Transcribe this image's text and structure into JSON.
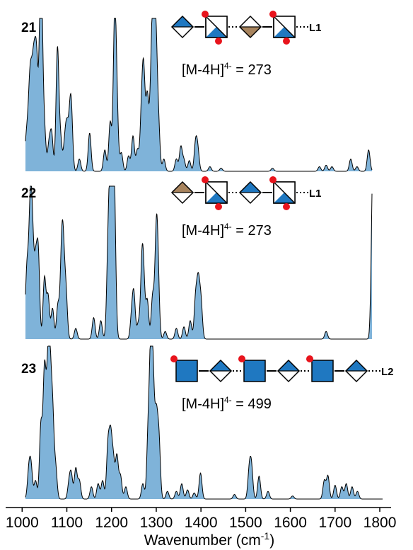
{
  "chart_data": {
    "type": "area",
    "title": "",
    "xlabel": "Wavenumber (cm",
    "xlabel_sup": "-1",
    "xlabel_close": ")",
    "ylabel": "",
    "xlim": [
      960,
      1830
    ],
    "x_ticks": [
      1000,
      1100,
      1200,
      1300,
      1400,
      1500,
      1600,
      1700,
      1800
    ],
    "grid": false,
    "fill_color": "#7fb3d9",
    "line_color": "#000000",
    "symbol_colors": {
      "glcnac_blue": "#1f78c1",
      "iduronic_tan": "#a8845e",
      "sulfate_red": "#e8141c"
    },
    "panels": [
      {
        "id": "21",
        "label": "21",
        "mass_text": "[M-4H]",
        "mass_charge": "4-",
        "mass_value": " = 273",
        "linker": "L1",
        "glycan": [
          {
            "kind": "diamond",
            "fill": "blue-top",
            "sulfate": "none"
          },
          {
            "kind": "square",
            "fill": "diag-blue",
            "sulfate": "tl-br"
          },
          {
            "kind": "diamond",
            "fill": "tan-bottom",
            "sulfate": "none"
          },
          {
            "kind": "square",
            "fill": "diag-blue",
            "sulfate": "tl-br"
          }
        ],
        "peaks": [
          [
            1003,
            0.07
          ],
          [
            1010,
            0.22
          ],
          [
            1016,
            0.37
          ],
          [
            1020,
            0.42
          ],
          [
            1025,
            0.48
          ],
          [
            1029,
            0.4
          ],
          [
            1033,
            0.55
          ],
          [
            1041,
            0.9
          ],
          [
            1044,
            0.62
          ],
          [
            1050,
            0.25
          ],
          [
            1060,
            0.17
          ],
          [
            1066,
            0.24
          ],
          [
            1079,
            0.8
          ],
          [
            1086,
            0.2
          ],
          [
            1095,
            0.16
          ],
          [
            1100,
            0.26
          ],
          [
            1106,
            0.23
          ],
          [
            1110,
            0.37
          ],
          [
            1128,
            0.08
          ],
          [
            1151,
            0.25
          ],
          [
            1185,
            0.14
          ],
          [
            1197,
            0.32
          ],
          [
            1207,
            0.98
          ],
          [
            1212,
            0.38
          ],
          [
            1222,
            0.12
          ],
          [
            1238,
            0.1
          ],
          [
            1248,
            0.23
          ],
          [
            1258,
            0.14
          ],
          [
            1267,
            0.35
          ],
          [
            1272,
            0.6
          ],
          [
            1280,
            0.48
          ],
          [
            1288,
            0.45
          ],
          [
            1293,
            0.93
          ],
          [
            1299,
            0.82
          ],
          [
            1305,
            0.3
          ],
          [
            1317,
            0.08
          ],
          [
            1345,
            0.08
          ],
          [
            1355,
            0.16
          ],
          [
            1362,
            0.07
          ],
          [
            1374,
            0.07
          ],
          [
            1388,
            0.18
          ],
          [
            1393,
            0.13
          ],
          [
            1420,
            0.03
          ],
          [
            1445,
            0.02
          ],
          [
            1560,
            0.02
          ],
          [
            1665,
            0.03
          ],
          [
            1680,
            0.04
          ],
          [
            1693,
            0.03
          ],
          [
            1735,
            0.08
          ],
          [
            1749,
            0.03
          ],
          [
            1775,
            0.14
          ]
        ]
      },
      {
        "id": "22",
        "label": "22",
        "mass_text": "[M-4H]",
        "mass_charge": "4-",
        "mass_value": " = 273",
        "linker": "L1",
        "glycan": [
          {
            "kind": "diamond",
            "fill": "tan-top",
            "sulfate": "none"
          },
          {
            "kind": "square",
            "fill": "diag-blue",
            "sulfate": "tl-br"
          },
          {
            "kind": "diamond",
            "fill": "blue-top",
            "sulfate": "none"
          },
          {
            "kind": "square",
            "fill": "diag-blue",
            "sulfate": "tl-br"
          }
        ],
        "peaks": [
          [
            1005,
            0.06
          ],
          [
            1011,
            0.45
          ],
          [
            1018,
            0.76
          ],
          [
            1023,
            0.6
          ],
          [
            1030,
            0.45
          ],
          [
            1036,
            0.55
          ],
          [
            1050,
            0.4
          ],
          [
            1058,
            0.28
          ],
          [
            1068,
            0.2
          ],
          [
            1080,
            0.22
          ],
          [
            1088,
            0.45
          ],
          [
            1092,
            0.48
          ],
          [
            1098,
            0.3
          ],
          [
            1120,
            0.07
          ],
          [
            1160,
            0.14
          ],
          [
            1176,
            0.12
          ],
          [
            1192,
            0.5
          ],
          [
            1197,
            0.84
          ],
          [
            1203,
            0.97
          ],
          [
            1207,
            0.6
          ],
          [
            1245,
            0.14
          ],
          [
            1250,
            0.28
          ],
          [
            1260,
            0.1
          ],
          [
            1268,
            0.45
          ],
          [
            1272,
            0.3
          ],
          [
            1280,
            0.25
          ],
          [
            1292,
            0.28
          ],
          [
            1300,
            0.62
          ],
          [
            1304,
            0.35
          ],
          [
            1320,
            0.05
          ],
          [
            1345,
            0.07
          ],
          [
            1362,
            0.08
          ],
          [
            1376,
            0.12
          ],
          [
            1388,
            0.26
          ],
          [
            1394,
            0.35
          ],
          [
            1400,
            0.24
          ],
          [
            1680,
            0.05
          ],
          [
            1784,
            0.95
          ],
          [
            1789,
            0.72
          ]
        ]
      },
      {
        "id": "23",
        "label": "23",
        "mass_text": "[M-4H]",
        "mass_charge": "4-",
        "mass_value": " = 499",
        "linker": "L2",
        "glycan": [
          {
            "kind": "square",
            "fill": "blue",
            "sulfate": "tl"
          },
          {
            "kind": "diamond",
            "fill": "blue-top",
            "sulfate": "none"
          },
          {
            "kind": "square",
            "fill": "blue",
            "sulfate": "tl"
          },
          {
            "kind": "diamond",
            "fill": "blue-top",
            "sulfate": "none"
          },
          {
            "kind": "square",
            "fill": "blue",
            "sulfate": "tl"
          },
          {
            "kind": "diamond",
            "fill": "blue-top",
            "sulfate": "none"
          }
        ],
        "peaks": [
          [
            997,
            0.1
          ],
          [
            1015,
            0.18
          ],
          [
            1020,
            0.2
          ],
          [
            1030,
            0.12
          ],
          [
            1042,
            0.48
          ],
          [
            1050,
            0.82
          ],
          [
            1057,
            0.68
          ],
          [
            1062,
            0.76
          ],
          [
            1068,
            0.55
          ],
          [
            1075,
            0.2
          ],
          [
            1105,
            0.1
          ],
          [
            1110,
            0.15
          ],
          [
            1120,
            0.2
          ],
          [
            1128,
            0.12
          ],
          [
            1155,
            0.08
          ],
          [
            1170,
            0.1
          ],
          [
            1180,
            0.12
          ],
          [
            1192,
            0.34
          ],
          [
            1198,
            0.38
          ],
          [
            1204,
            0.24
          ],
          [
            1212,
            0.28
          ],
          [
            1220,
            0.15
          ],
          [
            1232,
            0.08
          ],
          [
            1270,
            0.1
          ],
          [
            1282,
            0.42
          ],
          [
            1288,
            0.9
          ],
          [
            1293,
            0.65
          ],
          [
            1300,
            0.5
          ],
          [
            1306,
            0.38
          ],
          [
            1325,
            0.05
          ],
          [
            1345,
            0.05
          ],
          [
            1357,
            0.1
          ],
          [
            1370,
            0.06
          ],
          [
            1385,
            0.04
          ],
          [
            1399,
            0.17
          ],
          [
            1475,
            0.03
          ],
          [
            1508,
            0.18
          ],
          [
            1513,
            0.2
          ],
          [
            1530,
            0.15
          ],
          [
            1550,
            0.05
          ],
          [
            1605,
            0.02
          ],
          [
            1676,
            0.12
          ],
          [
            1684,
            0.15
          ],
          [
            1700,
            0.09
          ],
          [
            1715,
            0.08
          ],
          [
            1725,
            0.1
          ],
          [
            1738,
            0.08
          ],
          [
            1750,
            0.05
          ]
        ]
      }
    ]
  }
}
